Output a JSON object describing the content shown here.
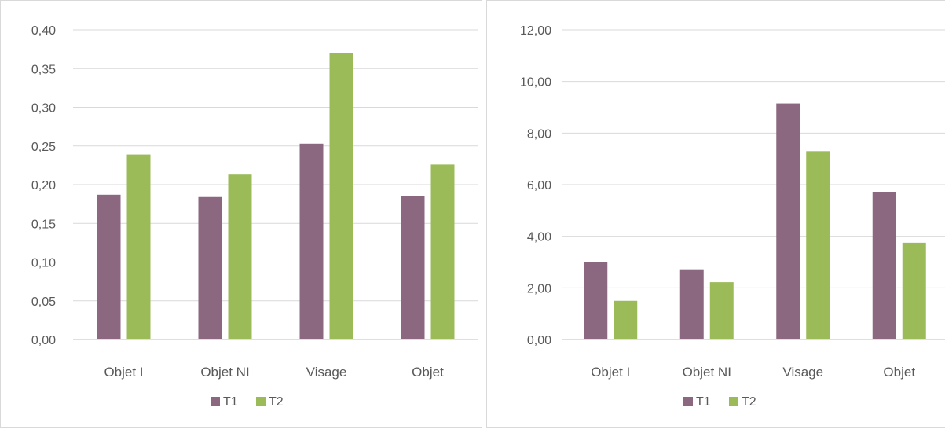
{
  "colors": {
    "T1": "#8b687f",
    "T2": "#9bbb59"
  },
  "chart_data": [
    {
      "type": "bar",
      "categories": [
        "Objet I",
        "Objet NI",
        "Visage",
        "Objet"
      ],
      "series": [
        {
          "name": "T1",
          "values": [
            0.187,
            0.184,
            0.253,
            0.185
          ]
        },
        {
          "name": "T2",
          "values": [
            0.239,
            0.213,
            0.37,
            0.226
          ]
        }
      ],
      "yticks": [
        "0,00",
        "0,05",
        "0,10",
        "0,15",
        "0,20",
        "0,25",
        "0,30",
        "0,35",
        "0,40"
      ],
      "ylim": [
        0,
        0.4
      ],
      "legend": "bottom",
      "grid": true
    },
    {
      "type": "bar",
      "categories": [
        "Objet I",
        "Objet NI",
        "Visage",
        "Objet"
      ],
      "series": [
        {
          "name": "T1",
          "values": [
            3.0,
            2.72,
            9.15,
            5.7
          ]
        },
        {
          "name": "T2",
          "values": [
            1.5,
            2.22,
            7.3,
            3.75
          ]
        }
      ],
      "yticks": [
        "0,00",
        "2,00",
        "4,00",
        "6,00",
        "8,00",
        "10,00",
        "12,00"
      ],
      "ylim": [
        0,
        12
      ],
      "legend": "bottom",
      "grid": true
    }
  ]
}
